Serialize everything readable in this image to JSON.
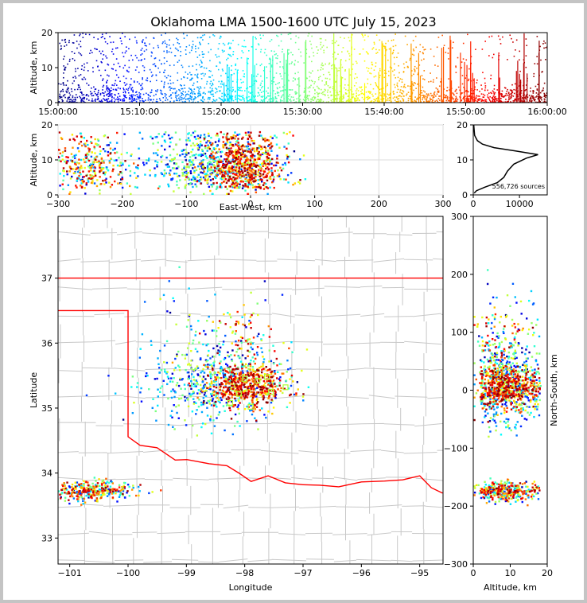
{
  "title": "Oklahoma LMA 1500-1600 UTC July 15, 2023",
  "colors": {
    "state_border": "#ff0000",
    "county_lines": "#c8c8c8",
    "frame": "#c4c4c4",
    "first_points": "#00008b",
    "last_points": "#8b0000",
    "colormap": "jet"
  },
  "chart_data": [
    {
      "id": "time_height",
      "type": "scatter",
      "xlabel": "",
      "ylabel": "Altitude, km",
      "xlim": [
        "15:00:00",
        "16:00:00"
      ],
      "ylim": [
        0,
        20
      ],
      "xticks": [
        "15:00:00",
        "15:10:00",
        "15:20:00",
        "15:30:00",
        "15:40:00",
        "15:50:00",
        "16:00:00"
      ],
      "yticks": [
        "0",
        "10",
        "20"
      ],
      "color_by": "time"
    },
    {
      "id": "eastwest_height",
      "type": "scatter",
      "xlabel": "East-West, km",
      "ylabel": "Altitude, km",
      "xlim": [
        -300,
        300
      ],
      "ylim": [
        0,
        20
      ],
      "xticks": [
        "−300",
        "−200",
        "−100",
        "0",
        "100",
        "200",
        "300"
      ],
      "yticks": [
        "0",
        "10",
        "20"
      ],
      "grid": true,
      "color_by": "time"
    },
    {
      "id": "altitude_histogram",
      "type": "line",
      "xlabel": "",
      "ylabel": "",
      "xlim": [
        0,
        16000
      ],
      "ylim": [
        0,
        20
      ],
      "xticks": [
        "0",
        "10000"
      ],
      "yticks": [
        "0",
        "10",
        "20"
      ],
      "annotation": "556,726 sources",
      "x": [
        200,
        700,
        2500,
        5200,
        6600,
        7400,
        8800,
        11500,
        14000,
        9000,
        4500,
        2000,
        900,
        300,
        100
      ],
      "y": [
        0.5,
        1.2,
        2.2,
        3.5,
        5.0,
        6.8,
        8.8,
        10.5,
        11.5,
        12.6,
        13.5,
        14.5,
        15.5,
        17,
        20
      ]
    },
    {
      "id": "plan_view",
      "type": "scatter",
      "xlabel": "Longitude",
      "ylabel": "Latitude",
      "xlim": [
        -101.2,
        -94.6
      ],
      "ylim": [
        32.6,
        37.95
      ],
      "xticks": [
        "−101",
        "−100",
        "−99",
        "−98",
        "−97",
        "−96",
        "−95"
      ],
      "yticks": [
        "33",
        "34",
        "35",
        "36",
        "37"
      ],
      "color_by": "time",
      "network_stations_lon": [
        -98.0,
        -97.78,
        -97.62,
        -98.1,
        -97.55,
        -97.3,
        -98.25,
        -97.9
      ],
      "network_stations_lat": [
        35.45,
        35.42,
        35.48,
        35.22,
        35.25,
        35.32,
        35.08,
        35.02
      ]
    },
    {
      "id": "height_northsouth",
      "type": "scatter",
      "xlabel": "Altitude, km",
      "ylabel": "North-South, km",
      "xlim": [
        0,
        20
      ],
      "ylim": [
        -300,
        300
      ],
      "xticks": [
        "0",
        "10",
        "20"
      ],
      "yticks": [
        "−300",
        "−200",
        "−100",
        "0",
        "100",
        "200",
        "300"
      ],
      "color_by": "time"
    }
  ]
}
